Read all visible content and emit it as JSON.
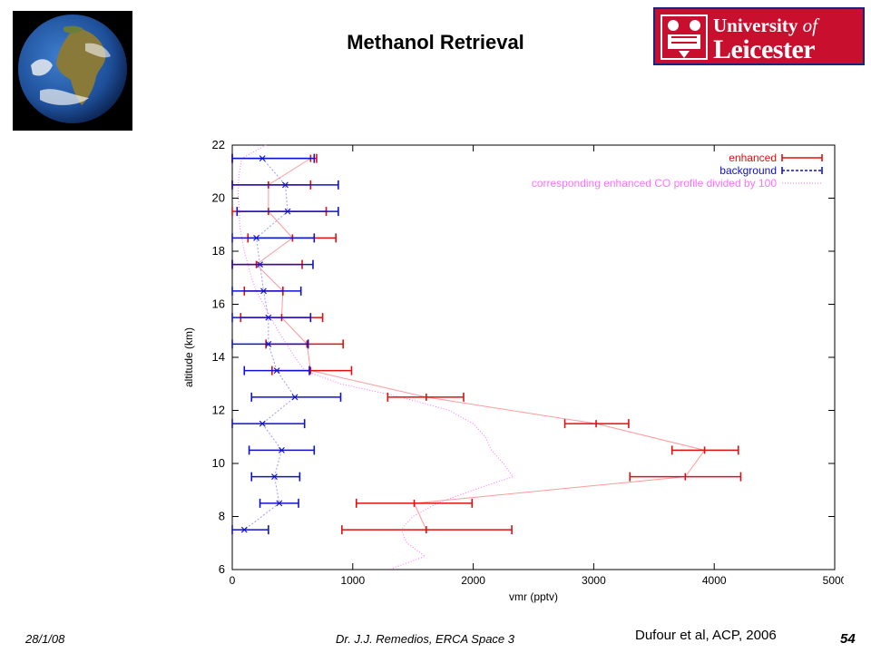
{
  "slide": {
    "title": "Methanol Retrieval",
    "date": "28/1/08",
    "author": "Dr. J.J. Remedios, ERCA Space 3",
    "credit": "Dufour et al, ACP, 2006",
    "page": "54"
  },
  "logo": {
    "line1": "University",
    "line1_italic": "of",
    "line2": "Leicester",
    "colors": {
      "background": "#c8102e",
      "border": "#1a237e",
      "text": "#ffffff"
    }
  },
  "globe": {
    "icon": "earth-globe-icon"
  },
  "chart_data": {
    "type": "line",
    "title": "",
    "xlabel": "vmr (pptv)",
    "ylabel": "altitude (km)",
    "xlim": [
      0,
      5000
    ],
    "ylim": [
      6,
      22
    ],
    "xticks": [
      "0",
      "1000",
      "2000",
      "3000",
      "4000",
      "5000"
    ],
    "yticks": [
      "6",
      "8",
      "10",
      "12",
      "14",
      "16",
      "18",
      "20",
      "22"
    ],
    "grid": false,
    "legend_position": "top-right",
    "colors": {
      "enhanced": "#e01010",
      "background": "#1010d0",
      "co_profile": "#ff70ff"
    },
    "series": [
      {
        "name": "enhanced",
        "points": [
          {
            "alt": 21.5,
            "vmr": 650,
            "lo": 0,
            "hi": 700
          },
          {
            "alt": 20.5,
            "vmr": 300,
            "lo": 0,
            "hi": 650
          },
          {
            "alt": 19.5,
            "vmr": 300,
            "lo": 0,
            "hi": 780
          },
          {
            "alt": 18.5,
            "vmr": 500,
            "lo": 130,
            "hi": 860
          },
          {
            "alt": 17.5,
            "vmr": 200,
            "lo": 0,
            "hi": 580
          },
          {
            "alt": 16.5,
            "vmr": 420,
            "lo": 100,
            "hi": 420
          },
          {
            "alt": 15.5,
            "vmr": 410,
            "lo": 70,
            "hi": 750
          },
          {
            "alt": 14.5,
            "vmr": 620,
            "lo": 280,
            "hi": 920
          },
          {
            "alt": 13.5,
            "vmr": 650,
            "lo": 330,
            "hi": 990
          },
          {
            "alt": 12.5,
            "vmr": 1610,
            "lo": 1290,
            "hi": 1920
          },
          {
            "alt": 11.5,
            "vmr": 3020,
            "lo": 2760,
            "hi": 3290
          },
          {
            "alt": 10.5,
            "vmr": 3920,
            "lo": 3650,
            "hi": 4200
          },
          {
            "alt": 9.5,
            "vmr": 3760,
            "lo": 3300,
            "hi": 4220
          },
          {
            "alt": 8.5,
            "vmr": 1510,
            "lo": 1030,
            "hi": 1990
          },
          {
            "alt": 7.5,
            "vmr": 1610,
            "lo": 910,
            "hi": 2320
          }
        ]
      },
      {
        "name": "background",
        "points": [
          {
            "alt": 21.5,
            "vmr": 250,
            "lo": 0,
            "hi": 680
          },
          {
            "alt": 20.5,
            "vmr": 440,
            "lo": 0,
            "hi": 880
          },
          {
            "alt": 19.5,
            "vmr": 460,
            "lo": 40,
            "hi": 880
          },
          {
            "alt": 18.5,
            "vmr": 200,
            "lo": 0,
            "hi": 680
          },
          {
            "alt": 17.5,
            "vmr": 230,
            "lo": 0,
            "hi": 670
          },
          {
            "alt": 16.5,
            "vmr": 260,
            "lo": 0,
            "hi": 570
          },
          {
            "alt": 15.5,
            "vmr": 300,
            "lo": 0,
            "hi": 650
          },
          {
            "alt": 14.5,
            "vmr": 300,
            "lo": 0,
            "hi": 630
          },
          {
            "alt": 13.5,
            "vmr": 370,
            "lo": 100,
            "hi": 640
          },
          {
            "alt": 12.5,
            "vmr": 520,
            "lo": 160,
            "hi": 900
          },
          {
            "alt": 11.5,
            "vmr": 250,
            "lo": 0,
            "hi": 600
          },
          {
            "alt": 10.5,
            "vmr": 410,
            "lo": 140,
            "hi": 680
          },
          {
            "alt": 9.5,
            "vmr": 350,
            "lo": 160,
            "hi": 560
          },
          {
            "alt": 8.5,
            "vmr": 390,
            "lo": 230,
            "hi": 550
          },
          {
            "alt": 7.5,
            "vmr": 100,
            "lo": 0,
            "hi": 300
          }
        ]
      },
      {
        "name": "corresponding enhanced CO profile divided by 100",
        "points": [
          {
            "alt": 22.0,
            "vmr": 280
          },
          {
            "alt": 21.5,
            "vmr": 80
          },
          {
            "alt": 21.0,
            "vmr": 60
          },
          {
            "alt": 20.5,
            "vmr": 50
          },
          {
            "alt": 20.0,
            "vmr": 50
          },
          {
            "alt": 19.5,
            "vmr": 60
          },
          {
            "alt": 19.0,
            "vmr": 60
          },
          {
            "alt": 18.5,
            "vmr": 80
          },
          {
            "alt": 18.0,
            "vmr": 100
          },
          {
            "alt": 17.5,
            "vmr": 130
          },
          {
            "alt": 17.0,
            "vmr": 160
          },
          {
            "alt": 16.5,
            "vmr": 200
          },
          {
            "alt": 16.0,
            "vmr": 260
          },
          {
            "alt": 15.5,
            "vmr": 320
          },
          {
            "alt": 15.0,
            "vmr": 380
          },
          {
            "alt": 14.5,
            "vmr": 450
          },
          {
            "alt": 14.0,
            "vmr": 520
          },
          {
            "alt": 13.5,
            "vmr": 600
          },
          {
            "alt": 13.0,
            "vmr": 900
          },
          {
            "alt": 12.5,
            "vmr": 1400
          },
          {
            "alt": 12.0,
            "vmr": 1800
          },
          {
            "alt": 11.5,
            "vmr": 2000
          },
          {
            "alt": 11.0,
            "vmr": 2100
          },
          {
            "alt": 10.5,
            "vmr": 2150
          },
          {
            "alt": 10.0,
            "vmr": 2250
          },
          {
            "alt": 9.5,
            "vmr": 2330
          },
          {
            "alt": 9.0,
            "vmr": 2000
          },
          {
            "alt": 8.5,
            "vmr": 1700
          },
          {
            "alt": 8.0,
            "vmr": 1500
          },
          {
            "alt": 7.5,
            "vmr": 1400
          },
          {
            "alt": 7.0,
            "vmr": 1450
          },
          {
            "alt": 6.5,
            "vmr": 1600
          },
          {
            "alt": 6.0,
            "vmr": 1300
          }
        ]
      }
    ]
  }
}
